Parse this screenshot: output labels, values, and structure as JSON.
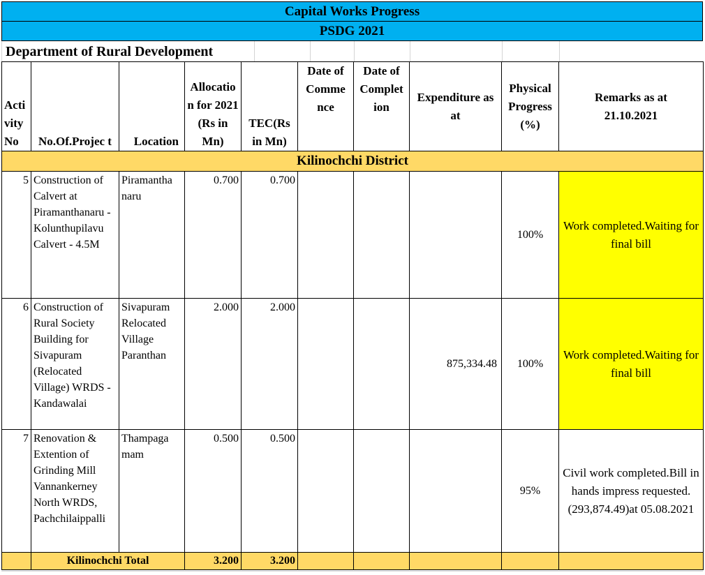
{
  "banner": {
    "title": "Capital Works  Progress",
    "subtitle": "PSDG 2021"
  },
  "department": "Department of Rural Development",
  "headers": {
    "activity_no": "Acti vity No",
    "project_no": "No.Of.Projec t",
    "location": "Location",
    "allocation": "Allocatio n for 2021 (Rs in Mn)",
    "tec": "TEC(Rs in Mn)",
    "date_commence": "Date of Comme nce",
    "date_completion": "Date of Complet ion",
    "expenditure": "Expenditure as at",
    "physical_progress": "Physical Progress (%)",
    "remarks": "Remarks as at 21.10.2021"
  },
  "district": "Kilinochchi  District",
  "rows": [
    {
      "activity": "5",
      "project": "Construction of Calvert at Piramanthanaru - Kolunthupilavu Calvert - 4.5M",
      "location": "Piramantha naru",
      "allocation": "0.700",
      "tec": "0.700",
      "date_commence": "",
      "date_completion": "",
      "expenditure": "",
      "progress": "100%",
      "remarks": "Work completed.Waiting for final bill",
      "highlight": "#ffff00"
    },
    {
      "activity": "6",
      "project": "Construction of Rural Society Building for Sivapuram (Relocated Village) WRDS - Kandawalai",
      "location": "Sivapuram Relocated Village Paranthan",
      "allocation": "2.000",
      "tec": "2.000",
      "date_commence": "",
      "date_completion": "",
      "expenditure": "875,334.48",
      "progress": "100%",
      "remarks": "Work completed.Waiting for final bill",
      "highlight": "#ffff00"
    },
    {
      "activity": "7",
      "project": "Renovation & Extention of Grinding Mill Vannankerney North WRDS, Pachchilaippalli",
      "location": "Thampaga mam",
      "allocation": "0.500",
      "tec": "0.500",
      "date_commence": "",
      "date_completion": "",
      "expenditure": "",
      "progress": "95%",
      "remarks": "Civil work completed.Bill in hands impress requested.(293,874.49)at 05.08.2021",
      "highlight": ""
    }
  ],
  "total": {
    "label": "Kilinochchi Total",
    "allocation": "3.200",
    "tec": "3.200"
  },
  "colors": {
    "banner": "#00b0f0",
    "district_band": "#ffd966",
    "highlight": "#ffff00"
  }
}
